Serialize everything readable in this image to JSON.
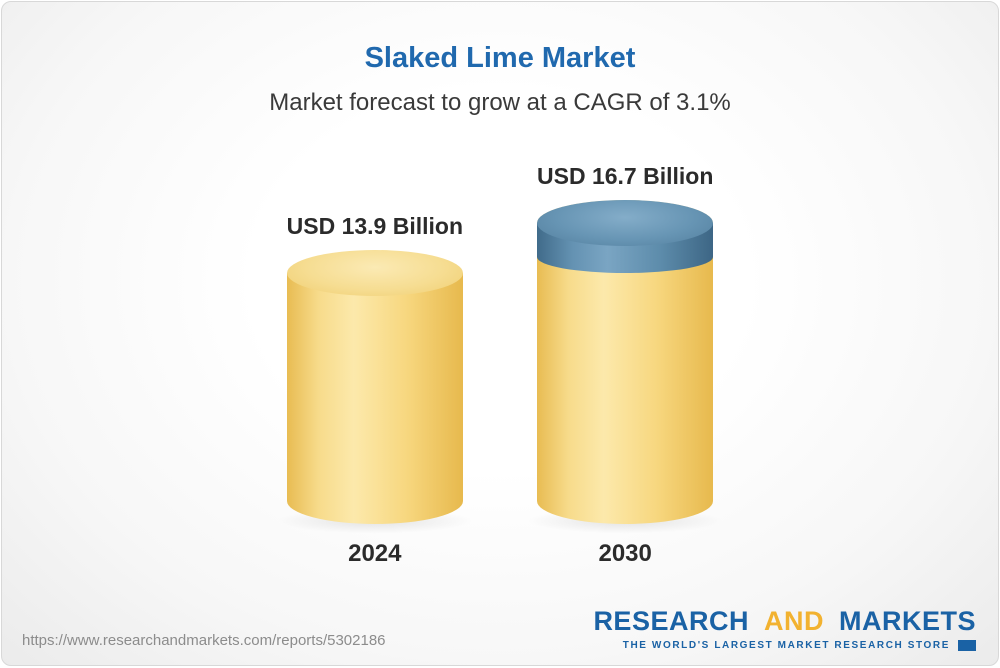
{
  "card": {
    "title": "Slaked Lime Market",
    "subtitle": "Market forecast to grow at a CAGR of 3.1%"
  },
  "chart_data": {
    "type": "bar",
    "title": "Slaked Lime Market",
    "subtitle": "Market forecast to grow at a CAGR of 3.1%",
    "categories": [
      "2024",
      "2030"
    ],
    "values": [
      13.9,
      16.7
    ],
    "unit": "USD Billion",
    "value_labels": [
      "USD 13.9 Billion",
      "USD 16.7 Billion"
    ],
    "cagr_pct": 3.1,
    "bar_color": "#f6d57f",
    "growth_segment_color": "#5d8cab",
    "ylim": [
      0,
      18
    ],
    "grid": false,
    "legend_position": "none"
  },
  "footer": {
    "url": "https://www.researchandmarkets.com/reports/5302186",
    "logo": {
      "part1": "RESEARCH",
      "part2": "AND",
      "part3": "MARKETS",
      "tagline": "THE WORLD'S LARGEST MARKET RESEARCH STORE",
      "brand_blue": "#1a62a5",
      "brand_gold": "#f2b230"
    }
  }
}
